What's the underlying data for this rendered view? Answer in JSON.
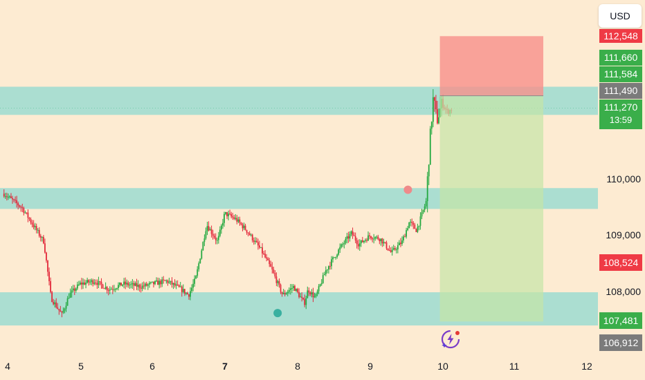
{
  "currency_button": "USD",
  "colors": {
    "background": "#fdebd2",
    "up": "#22a83f",
    "down": "#e2283a",
    "zone": "#8fd9d0",
    "stop_zone": "#f7908b",
    "target_zone": "#c5e6a7",
    "badge_red": "#ef3a45",
    "badge_green": "#3aae4a",
    "badge_gray": "#7b7b7b"
  },
  "price_badges": [
    {
      "id": "stop",
      "text": "112,548",
      "color": "#ef3a45"
    },
    {
      "id": "high",
      "text": "111,660",
      "color": "#3aae4a"
    },
    {
      "id": "zone-top",
      "text": "111,584",
      "color": "#3aae4a"
    },
    {
      "id": "entry",
      "text": "111,490",
      "color": "#7b7b7b"
    },
    {
      "id": "last",
      "text": "111,270",
      "color": "#3aae4a"
    },
    {
      "id": "countdown",
      "text": "13:59",
      "color": "#3aae4a"
    },
    {
      "id": "low-marker",
      "text": "108,524",
      "color": "#ef3a45"
    },
    {
      "id": "target",
      "text": "107,481",
      "color": "#3aae4a"
    },
    {
      "id": "low",
      "text": "106,912",
      "color": "#7b7b7b"
    }
  ],
  "price_labels": [
    "110,000",
    "109,000",
    "108,000"
  ],
  "chart_data": {
    "type": "candlestick",
    "x_ticks": [
      "4",
      "5",
      "6",
      "7",
      "8",
      "9",
      "10",
      "11",
      "12"
    ],
    "y_ticks": [
      108000,
      109000,
      110000
    ],
    "ylim": [
      106700,
      112900
    ],
    "zones": [
      {
        "name": "upper-resistance-zone",
        "from": 111150,
        "to": 111650
      },
      {
        "name": "middle-zone",
        "from": 109480,
        "to": 109850
      },
      {
        "name": "lower-support-zone",
        "from": 107410,
        "to": 108000
      }
    ],
    "position": {
      "entry": 111490,
      "stop": 112548,
      "target": 107481,
      "start_day": 10.0,
      "end_day": 11.4
    },
    "current_price": 111270,
    "markers": [
      {
        "kind": "circle",
        "color": "#ef8a8a",
        "day": 9.53,
        "price": 109820
      },
      {
        "kind": "circle",
        "color": "#3ab0a0",
        "day": 7.73,
        "price": 107630
      }
    ],
    "candle_path": [
      [
        3.95,
        109750
      ],
      [
        4.2,
        109500
      ],
      [
        4.5,
        108900
      ],
      [
        4.6,
        107900
      ],
      [
        4.75,
        107600
      ],
      [
        4.85,
        107950
      ],
      [
        5.0,
        108150
      ],
      [
        5.2,
        108200
      ],
      [
        5.4,
        108050
      ],
      [
        5.6,
        108150
      ],
      [
        5.85,
        108100
      ],
      [
        6.0,
        108150
      ],
      [
        6.2,
        108200
      ],
      [
        6.4,
        108050
      ],
      [
        6.5,
        107950
      ],
      [
        6.6,
        108250
      ],
      [
        6.75,
        109200
      ],
      [
        6.9,
        108900
      ],
      [
        7.0,
        109400
      ],
      [
        7.15,
        109300
      ],
      [
        7.3,
        109100
      ],
      [
        7.5,
        108750
      ],
      [
        7.65,
        108400
      ],
      [
        7.8,
        107950
      ],
      [
        7.95,
        108100
      ],
      [
        8.1,
        107800
      ],
      [
        8.15,
        108050
      ],
      [
        8.25,
        107900
      ],
      [
        8.4,
        108400
      ],
      [
        8.5,
        108600
      ],
      [
        8.6,
        108800
      ],
      [
        8.75,
        109050
      ],
      [
        8.85,
        108850
      ],
      [
        9.0,
        109000
      ],
      [
        9.15,
        108950
      ],
      [
        9.3,
        108700
      ],
      [
        9.45,
        108900
      ],
      [
        9.55,
        109250
      ],
      [
        9.65,
        109100
      ],
      [
        9.78,
        109600
      ],
      [
        9.84,
        110800
      ],
      [
        9.88,
        111450
      ],
      [
        9.93,
        111050
      ],
      [
        10.0,
        111350
      ],
      [
        10.08,
        111200
      ],
      [
        10.15,
        111270
      ]
    ]
  }
}
